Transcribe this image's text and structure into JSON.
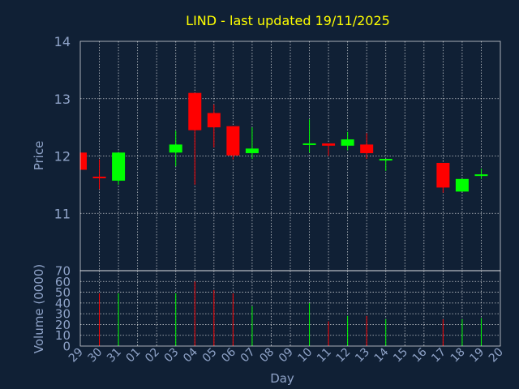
{
  "colors": {
    "background": "#102035",
    "title": "#ffff00",
    "axis_text": "#8fa3c8",
    "up": "#00ff00",
    "down": "#ff0000",
    "grid": "#ffffff",
    "frame": "#ffffff"
  },
  "chart_data": {
    "type": "candlestick",
    "title": "LIND - last updated 19/11/2025",
    "xlabel": "Day",
    "price_panel": {
      "ylabel": "Price",
      "ylim": [
        10,
        14
      ],
      "yticks": [
        "14",
        "13",
        "12",
        "11"
      ]
    },
    "volume_panel": {
      "ylabel": "Volume (0000)",
      "ylim": [
        0,
        70
      ],
      "yticks": [
        "70",
        "60",
        "50",
        "40",
        "30",
        "20",
        "10",
        "0"
      ]
    },
    "grid": true,
    "categories": [
      "29",
      "30",
      "31",
      "01",
      "02",
      "03",
      "04",
      "05",
      "06",
      "07",
      "08",
      "09",
      "10",
      "11",
      "12",
      "13",
      "14",
      "15",
      "16",
      "17",
      "18",
      "19",
      "20"
    ],
    "series": [
      {
        "day": "29",
        "open": 12.06,
        "high": 12.06,
        "low": 11.76,
        "close": 11.76,
        "volume": null
      },
      {
        "day": "30",
        "open": 11.64,
        "high": 11.94,
        "low": 11.42,
        "close": 11.62,
        "volume": 49
      },
      {
        "day": "31",
        "open": 11.57,
        "high": 12.06,
        "low": 11.5,
        "close": 12.06,
        "volume": 49
      },
      {
        "day": "03",
        "open": 12.06,
        "high": 12.44,
        "low": 11.82,
        "close": 12.2,
        "volume": 49
      },
      {
        "day": "04",
        "open": 13.1,
        "high": 13.1,
        "low": 11.5,
        "close": 12.45,
        "volume": 60
      },
      {
        "day": "05",
        "open": 12.75,
        "high": 12.9,
        "low": 12.15,
        "close": 12.5,
        "volume": 52
      },
      {
        "day": "06",
        "open": 12.52,
        "high": 12.52,
        "low": 11.94,
        "close": 12.01,
        "volume": 49
      },
      {
        "day": "07",
        "open": 12.05,
        "high": 12.5,
        "low": 11.95,
        "close": 12.13,
        "volume": 37
      },
      {
        "day": "10",
        "open": 12.22,
        "high": 12.64,
        "low": 12.06,
        "close": 12.22,
        "volume": 40
      },
      {
        "day": "11",
        "open": 12.22,
        "high": 12.22,
        "low": 12.0,
        "close": 12.18,
        "volume": 23
      },
      {
        "day": "12",
        "open": 12.18,
        "high": 12.42,
        "low": 12.1,
        "close": 12.29,
        "volume": 28
      },
      {
        "day": "13",
        "open": 12.2,
        "high": 12.4,
        "low": 11.95,
        "close": 12.05,
        "volume": 28
      },
      {
        "day": "14",
        "open": 11.93,
        "high": 11.95,
        "low": 11.74,
        "close": 11.95,
        "volume": 25
      },
      {
        "day": "17",
        "open": 11.88,
        "high": 11.88,
        "low": 11.36,
        "close": 11.45,
        "volume": 25
      },
      {
        "day": "18",
        "open": 11.38,
        "high": 11.6,
        "low": 11.38,
        "close": 11.6,
        "volume": 25
      },
      {
        "day": "19",
        "open": 11.66,
        "high": 11.78,
        "low": 11.6,
        "close": 11.68,
        "volume": 26
      }
    ]
  }
}
